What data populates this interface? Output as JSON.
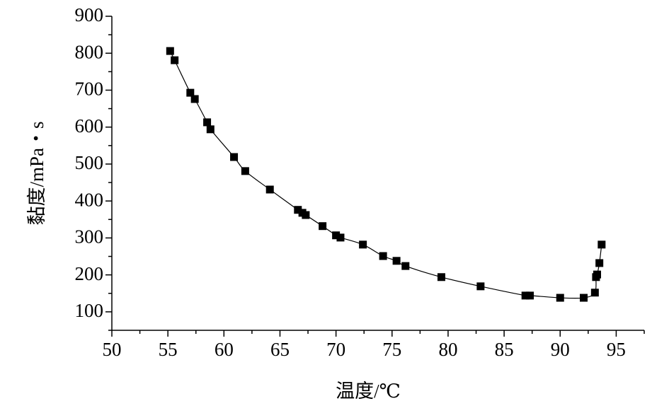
{
  "chart_data": {
    "type": "line",
    "x_label": "温度/℃",
    "y_label": "黏度/mPa・s",
    "x": [
      55.2,
      55.6,
      57.0,
      57.4,
      58.5,
      58.8,
      60.9,
      61.9,
      64.1,
      66.6,
      67.0,
      67.3,
      68.8,
      70.0,
      70.4,
      72.4,
      74.2,
      75.4,
      76.2,
      79.4,
      82.9,
      86.9,
      87.3,
      90.0,
      92.1,
      93.1,
      93.2,
      93.3,
      93.5,
      93.7
    ],
    "values": [
      806,
      781,
      693,
      676,
      613,
      594,
      519,
      481,
      431,
      376,
      368,
      362,
      332,
      307,
      301,
      282,
      251,
      238,
      224,
      194,
      169,
      144,
      144,
      138,
      138,
      152,
      194,
      201,
      232,
      282
    ],
    "color": "#000000",
    "xlim": [
      50,
      97.5
    ],
    "xticks": [
      50,
      55,
      60,
      65,
      70,
      75,
      80,
      85,
      90,
      95
    ],
    "ylim": [
      50,
      900
    ],
    "yticks": [
      100,
      200,
      300,
      400,
      500,
      600,
      700,
      800,
      900
    ]
  }
}
